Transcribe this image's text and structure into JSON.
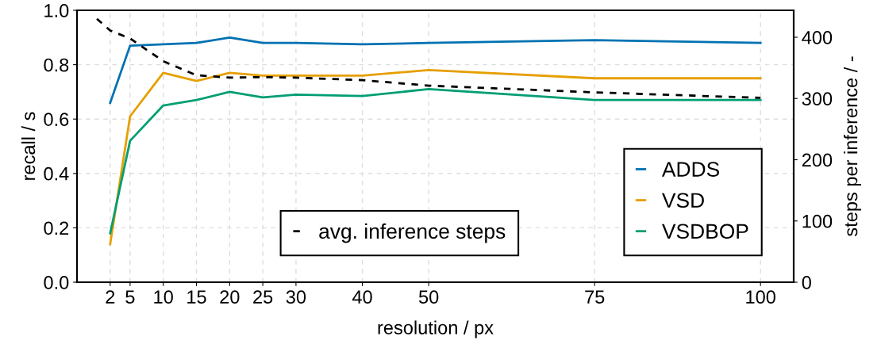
{
  "chart_data": {
    "type": "line",
    "xlabel": "resolution / px",
    "ylabel": "recall / s",
    "y2label": "steps per inference / -",
    "xlim": [
      -3,
      105
    ],
    "xticks": [
      2,
      5,
      10,
      15,
      20,
      25,
      30,
      40,
      50,
      75,
      100
    ],
    "ylim": [
      0,
      1
    ],
    "yticks": [
      {
        "value": 0,
        "label": "0.0"
      },
      {
        "value": 0.2,
        "label": "0.2"
      },
      {
        "value": 0.4,
        "label": "0.4"
      },
      {
        "value": 0.6,
        "label": "0.6"
      },
      {
        "value": 0.8,
        "label": "0.8"
      },
      {
        "value": 1,
        "label": "1.0"
      }
    ],
    "y2lim": [
      0,
      444
    ],
    "y2ticks": [
      0,
      100,
      200,
      300,
      400
    ],
    "x": [
      2,
      5,
      10,
      15,
      20,
      25,
      30,
      40,
      50,
      75,
      100
    ],
    "grid": true,
    "legend": "bottom right",
    "line_style": "solid",
    "marker": "none",
    "series": [
      {
        "name": "ADDS",
        "color": "#0072b2",
        "values": [
          0.66,
          0.87,
          0.875,
          0.88,
          0.9,
          0.88,
          0.88,
          0.875,
          0.88,
          0.89,
          0.88
        ]
      },
      {
        "name": "VSD",
        "color": "#e69f00",
        "values": [
          0.14,
          0.61,
          0.77,
          0.74,
          0.77,
          0.76,
          0.76,
          0.76,
          0.78,
          0.75,
          0.75
        ]
      },
      {
        "name": "VSDBOP",
        "color": "#009e73",
        "values": [
          0.18,
          0.52,
          0.65,
          0.67,
          0.7,
          0.68,
          0.69,
          0.685,
          0.71,
          0.67,
          0.67
        ]
      },
      {
        "name": "avg. inference steps",
        "color": "#000000",
        "axis": "y2",
        "line_style": "dashed",
        "x": [
          0,
          2,
          5,
          10,
          15,
          20,
          25,
          30,
          40,
          50,
          75,
          100
        ],
        "values": [
          430,
          411,
          398,
          361,
          338,
          334,
          335,
          334,
          330,
          321,
          310,
          301
        ]
      }
    ]
  }
}
